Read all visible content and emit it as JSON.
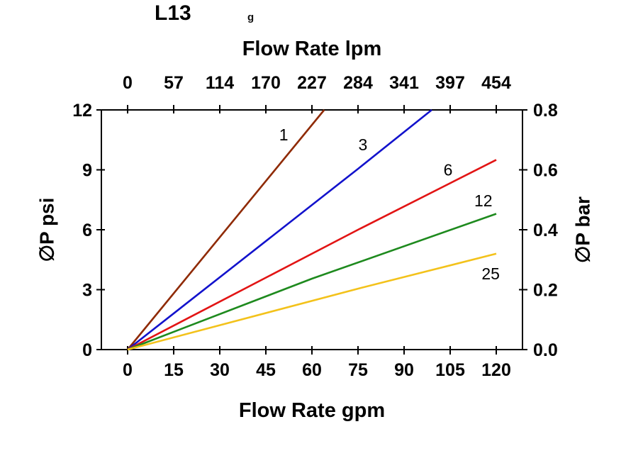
{
  "chart_data": {
    "type": "line",
    "title": "L13",
    "stray_glyph": "g",
    "top_axis": {
      "label": "Flow Rate lpm",
      "ticks": [
        "0",
        "57",
        "114",
        "170",
        "227",
        "284",
        "341",
        "397",
        "454"
      ]
    },
    "bottom_axis": {
      "label": "Flow Rate gpm",
      "ticks": [
        "0",
        "15",
        "30",
        "45",
        "60",
        "75",
        "90",
        "105",
        "120"
      ]
    },
    "left_axis": {
      "label": "∅P psi",
      "ticks": [
        "0",
        "3",
        "6",
        "9",
        "12"
      ]
    },
    "right_axis": {
      "label": "∅P bar",
      "ticks": [
        "0.0",
        "0.2",
        "0.4",
        "0.6",
        "0.8"
      ]
    },
    "x_range_gpm": [
      0,
      120
    ],
    "y_range_psi": [
      0,
      12
    ],
    "y_range_bar": [
      0.0,
      0.8
    ],
    "grid": false,
    "legend_position": "inline-labels",
    "series": [
      {
        "name": "1",
        "color": "#8f2a04",
        "points": [
          [
            0,
            0
          ],
          [
            64,
            12
          ]
        ],
        "label_at": [
          50.8,
          10.75
        ]
      },
      {
        "name": "3",
        "color": "#1212cc",
        "points": [
          [
            0,
            0
          ],
          [
            75,
            9.05
          ],
          [
            99,
            12
          ]
        ],
        "label_at": [
          76.6,
          10.26
        ]
      },
      {
        "name": "6",
        "color": "#e21414",
        "points": [
          [
            0,
            0
          ],
          [
            75,
            6.0
          ],
          [
            120,
            9.5
          ]
        ],
        "label_at": [
          104.3,
          9.0
        ]
      },
      {
        "name": "12",
        "color": "#1e8a1e",
        "points": [
          [
            0,
            0
          ],
          [
            60,
            3.55
          ],
          [
            120,
            6.8
          ]
        ],
        "label_at": [
          115.8,
          7.45
        ]
      },
      {
        "name": "25",
        "color": "#f3c21b",
        "points": [
          [
            0,
            0
          ],
          [
            75,
            3.05
          ],
          [
            120,
            4.8
          ]
        ],
        "label_at": [
          118.2,
          3.8
        ]
      }
    ]
  },
  "colors": {
    "axis": "#000000",
    "background": "#ffffff"
  }
}
